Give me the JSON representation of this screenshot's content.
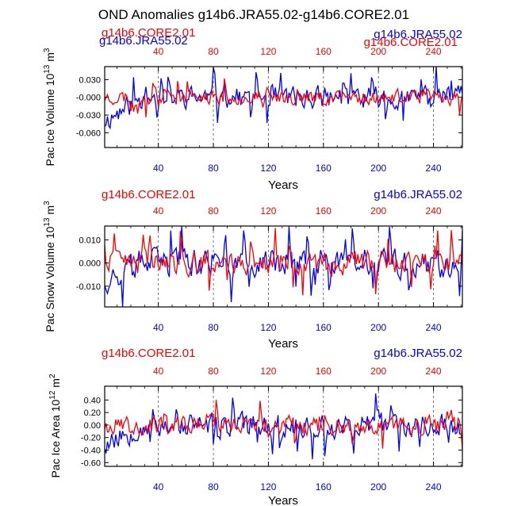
{
  "chart_data": [
    {
      "type": "line",
      "title": "OND Anomalies g14b6.JRA55.02-g14b6.CORE2.01",
      "xlabel": "Years",
      "ylabel": "Pac Ice Volume 10",
      "ylabel_exp1": "13",
      "ylabel_unit": " m",
      "ylabel_exp2": "3",
      "xlim": [
        1,
        261
      ],
      "ylim": [
        -0.085,
        0.052
      ],
      "xticks": [
        40,
        80,
        120,
        160,
        200,
        240
      ],
      "xtick_labels": [
        "40",
        "80",
        "120",
        "160",
        "200",
        "240"
      ],
      "yticks": [
        -0.06,
        -0.03,
        0.0,
        0.03
      ],
      "ytick_labels": [
        "-0.060",
        "-0.030",
        "-0.000",
        "0.030"
      ],
      "legend_left": "g14b6.CORE2.01",
      "legend_left_overlap": "g14b6.JRA55.02",
      "legend_right": "g14b6.JRA55.02",
      "legend_right_overlap": "g14b6.CORE2.01",
      "series": [
        {
          "name": "g14b6.JRA55.02",
          "color": "#0000ff",
          "amplitude": 0.017,
          "early_offset": -0.04,
          "seed": 11
        },
        {
          "name": "g14b6.CORE2.01",
          "color": "#ff0000",
          "amplitude": 0.011,
          "early_offset": 0.0,
          "seed": 23
        }
      ]
    },
    {
      "type": "line",
      "xlabel": "Years",
      "ylabel": "Pac Snow Volume 10",
      "ylabel_exp1": "13",
      "ylabel_unit": " m",
      "ylabel_exp2": "3",
      "xlim": [
        1,
        261
      ],
      "ylim": [
        -0.019,
        0.016
      ],
      "xticks": [
        40,
        80,
        120,
        160,
        200,
        240
      ],
      "xtick_labels": [
        "40",
        "80",
        "120",
        "160",
        "200",
        "240"
      ],
      "yticks": [
        -0.01,
        0.0,
        0.01
      ],
      "ytick_labels": [
        "-0.010",
        "0.000",
        "0.010"
      ],
      "legend_left": "g14b6.CORE2.01",
      "legend_right": "g14b6.JRA55.02",
      "series": [
        {
          "name": "g14b6.JRA55.02",
          "color": "#0000ff",
          "amplitude": 0.0055,
          "early_offset": -0.007,
          "seed": 37
        },
        {
          "name": "g14b6.CORE2.01",
          "color": "#ff0000",
          "amplitude": 0.0045,
          "early_offset": 0.0,
          "seed": 41
        }
      ]
    },
    {
      "type": "line",
      "xlabel": "Years",
      "ylabel": "Pac Ice Area 10",
      "ylabel_exp1": "12",
      "ylabel_unit": " m",
      "ylabel_exp2": "2",
      "xlim": [
        1,
        261
      ],
      "ylim": [
        -0.66,
        0.62
      ],
      "xticks": [
        40,
        80,
        120,
        160,
        200,
        240
      ],
      "xtick_labels": [
        "40",
        "80",
        "120",
        "160",
        "200",
        "240"
      ],
      "yticks": [
        -0.6,
        -0.4,
        -0.2,
        0.0,
        0.2,
        0.4
      ],
      "ytick_labels": [
        "-0.60",
        "-0.40",
        "-0.20",
        "0.00",
        "0.20",
        "0.40"
      ],
      "legend_left": "g14b6.CORE2.01",
      "legend_right": "g14b6.JRA55.02",
      "series": [
        {
          "name": "g14b6.JRA55.02",
          "color": "#0000ff",
          "amplitude": 0.17,
          "early_offset": -0.3,
          "seed": 53
        },
        {
          "name": "g14b6.CORE2.01",
          "color": "#ff0000",
          "amplitude": 0.13,
          "early_offset": 0.0,
          "seed": 67
        }
      ]
    }
  ]
}
